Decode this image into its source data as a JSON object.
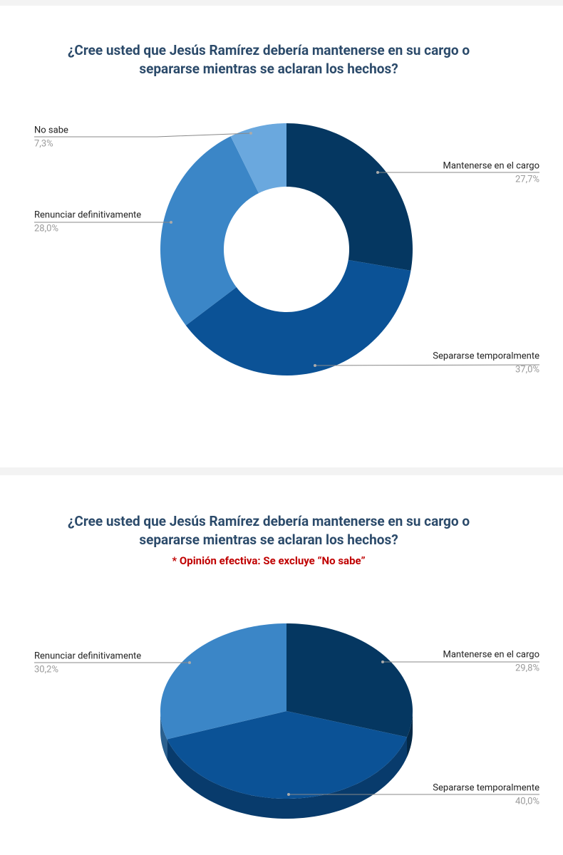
{
  "chart_data": [
    {
      "type": "donut",
      "title": [
        "¿Cree usted que Jesús Ramírez debería mantenerse en su cargo o",
        "separarse mientras se aclaran los hechos?"
      ],
      "categories": [
        "Mantenerse en el cargo",
        "Separarse temporalmente",
        "Renunciar definitivamente",
        "No sabe"
      ],
      "values": [
        27.7,
        37.0,
        28.0,
        7.3
      ],
      "value_labels": [
        "27,7%",
        "37,0%",
        "28,0%",
        "7,3%"
      ],
      "colors": [
        "#053761",
        "#0b5296",
        "#3b86c7",
        "#6aa8de"
      ]
    },
    {
      "type": "pie3d",
      "title": [
        "¿Cree usted que Jesús Ramírez debería mantenerse en su cargo o",
        "separarse mientras se aclaran los hechos?"
      ],
      "subtitle": "* Opinión efectiva: Se excluye “No sabe”",
      "categories": [
        "Mantenerse en el cargo",
        "Separarse temporalmente",
        "Renunciar definitivamente"
      ],
      "values": [
        29.8,
        40.0,
        30.2
      ],
      "value_labels": [
        "29,8%",
        "40,0%",
        "30,2%"
      ],
      "colors": [
        "#053761",
        "#0b5296",
        "#3b86c7"
      ]
    }
  ]
}
